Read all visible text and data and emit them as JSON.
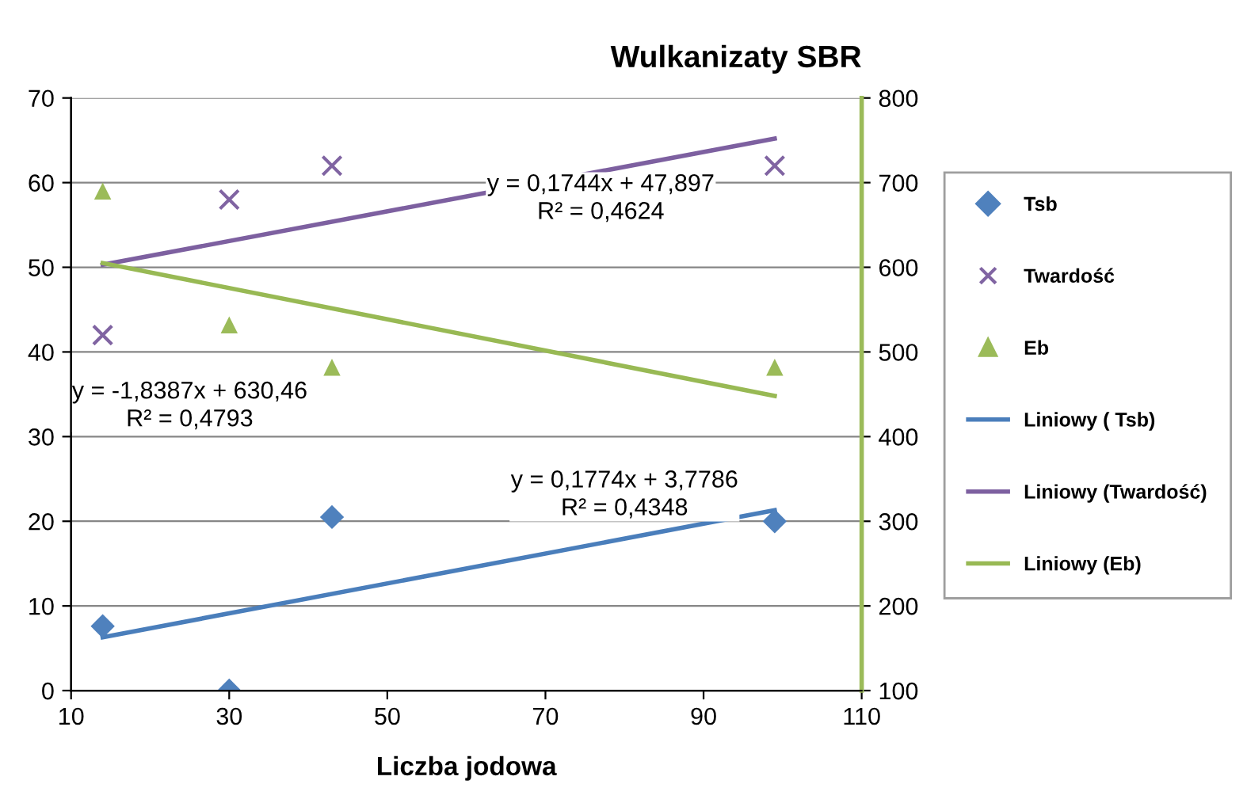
{
  "chart_data": {
    "type": "scatter",
    "title": "Wulkanizaty SBR",
    "xlabel": "Liczba jodowa",
    "xlim": [
      10,
      110
    ],
    "xticks": [
      10,
      30,
      50,
      70,
      90,
      110
    ],
    "ylim": [
      0,
      70
    ],
    "yticks": [
      0,
      10,
      20,
      30,
      40,
      50,
      60,
      70
    ],
    "y2lim": [
      100,
      800
    ],
    "y2ticks": [
      100,
      200,
      300,
      400,
      500,
      600,
      700,
      800
    ],
    "grid": "y",
    "legend": "right",
    "series": [
      {
        "name": "Tsb",
        "marker": "diamond",
        "color": "#4f81bd",
        "x": [
          14,
          30,
          43,
          99
        ],
        "values": [
          7.6,
          0,
          20.5,
          20
        ]
      },
      {
        "name": "Twardość",
        "marker": "cross",
        "color": "#8064a2",
        "x": [
          14,
          30,
          43,
          99
        ],
        "values": [
          42,
          58,
          62,
          62
        ]
      },
      {
        "name": "Eb",
        "marker": "triangle",
        "color": "#9bbb59",
        "axis": "y2",
        "x": [
          14,
          30,
          43,
          99
        ],
        "values": [
          690,
          532,
          482,
          482
        ]
      },
      {
        "name": "Liniowy ( Tsb)",
        "type": "line",
        "color": "#4a7ebb",
        "x": [
          14,
          99
        ],
        "values": [
          6.3,
          21.3
        ]
      },
      {
        "name": "Liniowy (Twardość)",
        "type": "line",
        "color": "#7d60a0",
        "x": [
          14,
          99
        ],
        "values": [
          50.3,
          65.2
        ]
      },
      {
        "name": "Liniowy (Eb)",
        "type": "line",
        "color": "#98b954",
        "axis": "y2",
        "x": [
          14,
          99
        ],
        "values": [
          605,
          448
        ]
      }
    ],
    "annotations": [
      "y = 0,1744x + 47,897\nR² = 0,4624",
      "y = -1,8387x + 630,46\nR² = 0,4793",
      "y = 0,1774x + 3,7786\nR² = 0,4348"
    ]
  }
}
